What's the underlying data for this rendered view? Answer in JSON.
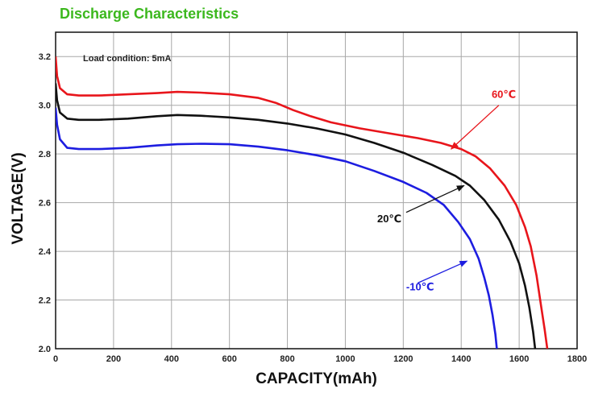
{
  "chart_data": {
    "type": "line",
    "title": "Discharge Characteristics",
    "annotation": "Load condition: 5mA",
    "xlabel": "CAPACITY(mAh)",
    "ylabel": "VOLTAGE(V)",
    "xlim": [
      0,
      1800
    ],
    "ylim": [
      2.0,
      3.3
    ],
    "x_ticks": [
      0,
      200,
      400,
      600,
      800,
      1000,
      1200,
      1400,
      1600,
      1800
    ],
    "y_ticks": [
      2.0,
      2.2,
      2.4,
      2.6,
      2.8,
      3.0,
      3.2
    ],
    "y_tick_labels": [
      "2.0",
      "2.2",
      "2.4",
      "2.6",
      "2.8",
      "3.0",
      "3.2"
    ],
    "grid": true,
    "series": [
      {
        "name": "60℃",
        "color": "#e8151b",
        "label_at": [
          1505,
          3.03
        ],
        "arrow_from": [
          1530,
          3.0
        ],
        "arrow_to": [
          1365,
          2.82
        ],
        "points": [
          [
            0,
            3.2
          ],
          [
            5,
            3.12
          ],
          [
            15,
            3.07
          ],
          [
            40,
            3.045
          ],
          [
            80,
            3.04
          ],
          [
            150,
            3.04
          ],
          [
            250,
            3.045
          ],
          [
            350,
            3.05
          ],
          [
            420,
            3.055
          ],
          [
            500,
            3.052
          ],
          [
            600,
            3.045
          ],
          [
            700,
            3.03
          ],
          [
            760,
            3.01
          ],
          [
            820,
            2.98
          ],
          [
            880,
            2.955
          ],
          [
            950,
            2.93
          ],
          [
            1050,
            2.905
          ],
          [
            1150,
            2.885
          ],
          [
            1250,
            2.865
          ],
          [
            1330,
            2.845
          ],
          [
            1400,
            2.82
          ],
          [
            1450,
            2.79
          ],
          [
            1500,
            2.74
          ],
          [
            1550,
            2.67
          ],
          [
            1590,
            2.59
          ],
          [
            1620,
            2.5
          ],
          [
            1640,
            2.42
          ],
          [
            1660,
            2.3
          ],
          [
            1675,
            2.18
          ],
          [
            1688,
            2.08
          ],
          [
            1697,
            2.0
          ]
        ]
      },
      {
        "name": "20℃",
        "color": "#111111",
        "label_at": [
          1110,
          2.52
        ],
        "arrow_from": [
          1210,
          2.56
        ],
        "arrow_to": [
          1410,
          2.67
        ],
        "points": [
          [
            0,
            3.09
          ],
          [
            5,
            3.02
          ],
          [
            15,
            2.97
          ],
          [
            40,
            2.945
          ],
          [
            80,
            2.94
          ],
          [
            150,
            2.94
          ],
          [
            250,
            2.945
          ],
          [
            350,
            2.955
          ],
          [
            420,
            2.96
          ],
          [
            500,
            2.957
          ],
          [
            600,
            2.95
          ],
          [
            700,
            2.94
          ],
          [
            800,
            2.925
          ],
          [
            900,
            2.905
          ],
          [
            1000,
            2.88
          ],
          [
            1100,
            2.845
          ],
          [
            1200,
            2.805
          ],
          [
            1300,
            2.755
          ],
          [
            1380,
            2.71
          ],
          [
            1430,
            2.67
          ],
          [
            1480,
            2.61
          ],
          [
            1530,
            2.53
          ],
          [
            1570,
            2.44
          ],
          [
            1600,
            2.35
          ],
          [
            1620,
            2.26
          ],
          [
            1635,
            2.17
          ],
          [
            1648,
            2.07
          ],
          [
            1655,
            2.0
          ]
        ]
      },
      {
        "name": "-10℃",
        "color": "#1d1de0",
        "label_at": [
          1210,
          2.24
        ],
        "arrow_from": [
          1250,
          2.27
        ],
        "arrow_to": [
          1420,
          2.36
        ],
        "points": [
          [
            0,
            2.99
          ],
          [
            5,
            2.92
          ],
          [
            15,
            2.86
          ],
          [
            40,
            2.825
          ],
          [
            80,
            2.82
          ],
          [
            150,
            2.82
          ],
          [
            250,
            2.825
          ],
          [
            350,
            2.835
          ],
          [
            420,
            2.84
          ],
          [
            500,
            2.842
          ],
          [
            600,
            2.84
          ],
          [
            700,
            2.83
          ],
          [
            800,
            2.815
          ],
          [
            900,
            2.795
          ],
          [
            1000,
            2.77
          ],
          [
            1100,
            2.73
          ],
          [
            1200,
            2.685
          ],
          [
            1280,
            2.64
          ],
          [
            1340,
            2.59
          ],
          [
            1390,
            2.52
          ],
          [
            1430,
            2.45
          ],
          [
            1460,
            2.37
          ],
          [
            1480,
            2.29
          ],
          [
            1495,
            2.22
          ],
          [
            1508,
            2.14
          ],
          [
            1518,
            2.06
          ],
          [
            1523,
            2.0
          ]
        ]
      }
    ]
  }
}
